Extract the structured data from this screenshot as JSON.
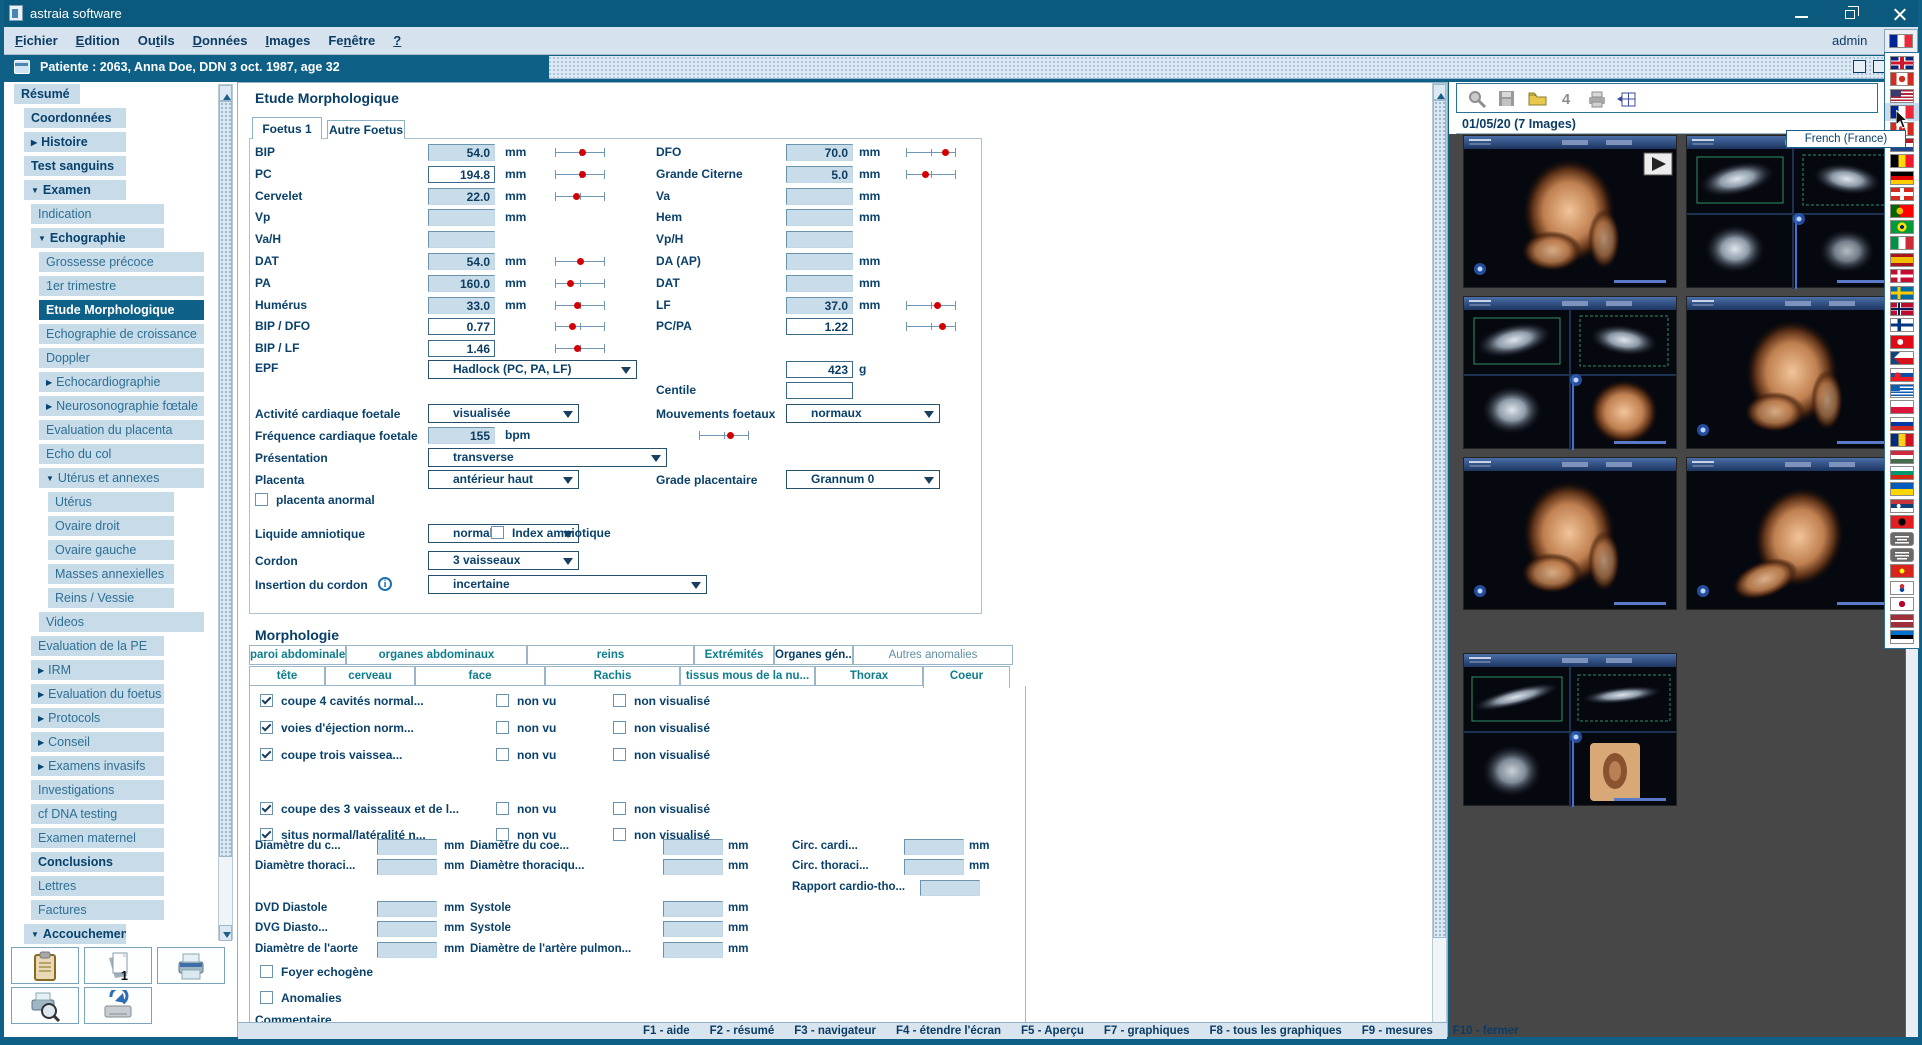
{
  "colors": {
    "titlebar": "#0b5a7d",
    "accent": "#0e6086",
    "navy": "#0a416b",
    "teal_text": "#0d7e8d",
    "sidebar_item_bg": "#c7dbe9",
    "field_bg": "#c9dce9",
    "red_dot": "#d40000"
  },
  "window": {
    "title": "astraia software",
    "controls": [
      {
        "name": "minimize"
      },
      {
        "name": "restore"
      },
      {
        "name": "close"
      }
    ]
  },
  "menu": {
    "items": [
      {
        "label": "Fichier",
        "u": 0
      },
      {
        "label": "Edition",
        "u": 0
      },
      {
        "label": "Outils",
        "u": 2
      },
      {
        "label": "Données",
        "u": 0
      },
      {
        "label": "Images",
        "u": 0
      },
      {
        "label": "Fenêtre",
        "u": 2
      },
      {
        "label": "?",
        "u": 0
      }
    ],
    "user": "admin"
  },
  "patient_bar": {
    "text": "Patiente :  2063, Anna Doe, DDN 3 oct. 1987, age 32"
  },
  "sidebar": {
    "items": [
      {
        "label": "Résumé",
        "level": 0,
        "bold": true
      },
      {
        "label": "Coordonnées",
        "level": 1,
        "bold": true
      },
      {
        "label": "Histoire",
        "level": 1,
        "bold": true,
        "expand": "closed"
      },
      {
        "label": "Test sanguins",
        "level": 1,
        "bold": true
      },
      {
        "label": "Examen",
        "level": 1,
        "bold": true,
        "expand": "open"
      },
      {
        "label": "Indication",
        "level": 2
      },
      {
        "label": "Echographie",
        "level": 2,
        "bold": true,
        "expand": "open"
      },
      {
        "label": "Grossesse précoce",
        "level": 3
      },
      {
        "label": "1er trimestre",
        "level": 3
      },
      {
        "label": "Etude Morphologique",
        "level": 3,
        "active": true
      },
      {
        "label": "Echographie de croissance",
        "level": 3
      },
      {
        "label": "Doppler",
        "level": 3
      },
      {
        "label": "Echocardiographie",
        "level": 3,
        "expand": "closed"
      },
      {
        "label": "Neurosonographie fœtale",
        "level": 3,
        "expand": "closed"
      },
      {
        "label": "Evaluation du placenta",
        "level": 3
      },
      {
        "label": "Echo du col",
        "level": 3
      },
      {
        "label": "Utérus et annexes",
        "level": 3,
        "expand": "open"
      },
      {
        "label": "Utérus",
        "level": 4
      },
      {
        "label": "Ovaire droit",
        "level": 4
      },
      {
        "label": "Ovaire gauche",
        "level": 4
      },
      {
        "label": "Masses annexielles",
        "level": 4
      },
      {
        "label": "Reins / Vessie",
        "level": 4
      },
      {
        "label": "Videos",
        "level": 3
      },
      {
        "label": "Evaluation de la PE",
        "level": 2
      },
      {
        "label": "IRM",
        "level": 2,
        "expand": "closed"
      },
      {
        "label": "Evaluation du foetus",
        "level": 2,
        "expand": "closed"
      },
      {
        "label": "Protocols",
        "level": 2,
        "expand": "closed"
      },
      {
        "label": "Conseil",
        "level": 2,
        "expand": "closed"
      },
      {
        "label": "Examens invasifs",
        "level": 2,
        "expand": "closed"
      },
      {
        "label": "Investigations",
        "level": 2
      },
      {
        "label": "cf DNA testing",
        "level": 2
      },
      {
        "label": "Examen maternel",
        "level": 2
      },
      {
        "label": "Conclusions",
        "level": 2,
        "bold": true
      },
      {
        "label": "Lettres",
        "level": 2
      },
      {
        "label": "Factures",
        "level": 2
      },
      {
        "label": "Accouchement",
        "level": 1,
        "bold": true,
        "expand": "open"
      }
    ],
    "buttons": [
      {
        "icon": "clipboard"
      },
      {
        "icon": "report",
        "badge": "1"
      },
      {
        "icon": "printer"
      },
      {
        "icon": "print-preview"
      },
      {
        "icon": "archive"
      }
    ]
  },
  "form": {
    "title": "Etude Morphologique",
    "tabs": [
      {
        "label": "Foetus 1",
        "active": true
      },
      {
        "label": "Autre Foetus"
      }
    ],
    "left_rows": [
      {
        "label": "BIP",
        "value": "54.0",
        "unit": "mm",
        "editable": false,
        "dot": 0.55
      },
      {
        "label": "PC",
        "value": "194.8",
        "unit": "mm",
        "editable": true,
        "dot": 0.55
      },
      {
        "label": "Cervelet",
        "value": "22.0",
        "unit": "mm",
        "editable": false,
        "dot": 0.42
      },
      {
        "label": "Vp",
        "value": "",
        "unit": "mm",
        "editable": false,
        "dot": null
      },
      {
        "label": "Va/H",
        "value": "",
        "unit": "",
        "editable": false,
        "dot": null
      },
      {
        "label": "DAT",
        "value": "54.0",
        "unit": "mm",
        "editable": false,
        "dot": 0.5
      },
      {
        "label": "PA",
        "value": "160.0",
        "unit": "mm",
        "editable": false,
        "dot": 0.3
      },
      {
        "label": "Humérus",
        "value": "33.0",
        "unit": "mm",
        "editable": false,
        "dot": 0.45
      },
      {
        "label": "BIP / DFO",
        "value": "0.77",
        "unit": "",
        "editable": true,
        "dot": 0.35
      },
      {
        "label": "BIP / LF",
        "value": "1.46",
        "unit": "",
        "editable": true,
        "dot": 0.45
      }
    ],
    "right_rows": [
      {
        "label": "DFO",
        "value": "70.0",
        "unit": "mm",
        "editable": false,
        "dot": 0.78
      },
      {
        "label": "Grande Citerne",
        "value": "5.0",
        "unit": "mm",
        "editable": false,
        "dot": 0.38
      },
      {
        "label": "Va",
        "value": "",
        "unit": "mm",
        "editable": false,
        "dot": null
      },
      {
        "label": "Hem",
        "value": "",
        "unit": "mm",
        "editable": false,
        "dot": null
      },
      {
        "label": "Vp/H",
        "value": "",
        "unit": "",
        "editable": false,
        "dot": null
      },
      {
        "label": "DA (AP)",
        "value": "",
        "unit": "mm",
        "editable": false,
        "dot": null
      },
      {
        "label": "DAT",
        "value": "",
        "unit": "mm",
        "editable": false,
        "dot": null
      },
      {
        "label": "LF",
        "value": "37.0",
        "unit": "mm",
        "editable": false,
        "dot": 0.62
      },
      {
        "label": "PC/PA",
        "value": "1.22",
        "unit": "",
        "editable": true,
        "dot": 0.72
      }
    ],
    "epf": {
      "label": "EPF",
      "method": "Hadlock (PC, PA, LF)",
      "value": "423",
      "unit": "g"
    },
    "centile": {
      "label": "Centile",
      "value": ""
    },
    "vitals_left": [
      {
        "label": "Activité cardiaque foetale",
        "control": "select",
        "value": "visualisée"
      },
      {
        "label": "Fréquence cardiaque foetale",
        "control": "field",
        "value": "155",
        "unit": "bpm",
        "dot": 0.62
      },
      {
        "label": "Présentation",
        "control": "select",
        "value": "transverse"
      },
      {
        "label": "Placenta",
        "control": "select",
        "value": "antérieur haut"
      },
      {
        "label": "placenta anormal",
        "control": "checkbox",
        "checked": false
      },
      {
        "label": "Liquide amniotique",
        "control": "select",
        "value": "normal"
      },
      {
        "label": "Cordon",
        "control": "select",
        "value": "3 vaisseaux"
      },
      {
        "label": "Insertion du cordon",
        "control": "select",
        "value": "incertaine",
        "info": true
      }
    ],
    "index_amniotique": {
      "label": "Index amniotique",
      "checked": false
    },
    "vitals_right": [
      {
        "label": "Mouvements foetaux",
        "control": "select",
        "value": "normaux"
      },
      {
        "label": "Grade placentaire",
        "control": "select",
        "value": "Grannum 0"
      }
    ],
    "morphologie": {
      "title": "Morphologie",
      "tabs_row1": [
        "paroi abdominale",
        "organes abdominaux",
        "reins",
        "Extrémités",
        "Organes gén...",
        "Autres anomalies"
      ],
      "tabs_row2": [
        "tête",
        "cerveau",
        "face",
        "Rachis",
        "tissus mous de la nu...",
        "Thorax",
        "Coeur"
      ],
      "active_tab": "Coeur",
      "bold_tab": "Organes gén...",
      "dim_tab": "Autres anomalies",
      "nonvu_label": "non vu",
      "nonvis_label": "non visualisé",
      "checklist": [
        {
          "label": "coupe 4 cavités normal...",
          "checked": true,
          "nonvu": false,
          "nonvis": false
        },
        {
          "label": "voies d'éjection norm...",
          "checked": true,
          "nonvu": false,
          "nonvis": false
        },
        {
          "label": "coupe trois vaissea...",
          "checked": true,
          "nonvu": false,
          "nonvis": false
        },
        {
          "label": "coupe des 3 vaisseaux et de l...",
          "checked": true,
          "nonvu": false,
          "nonvis": false
        },
        {
          "label": "situs normal/latéralité n...",
          "checked": true,
          "nonvu": false,
          "nonvis": false
        }
      ],
      "measure_rows": [
        [
          {
            "label": "Diamètre du c...",
            "unit": "mm",
            "value": ""
          },
          {
            "label": "Diamètre du coe...",
            "unit": "mm",
            "value": ""
          },
          {
            "label": "Circ. cardi...",
            "unit": "mm",
            "value": ""
          }
        ],
        [
          {
            "label": "Diamètre thoraci...",
            "unit": "mm",
            "value": ""
          },
          {
            "label": "Diamètre thoraciqu...",
            "unit": "mm",
            "value": ""
          },
          {
            "label": "Circ. thoraci...",
            "unit": "mm",
            "value": ""
          }
        ],
        [
          null,
          null,
          {
            "label": "Rapport cardio-tho...",
            "unit": "",
            "value": ""
          }
        ],
        [
          {
            "label": "DVD Diastole",
            "unit": "mm",
            "value": ""
          },
          {
            "label": "Systole",
            "unit": "mm",
            "value": ""
          },
          null
        ],
        [
          {
            "label": "DVG Diasto...",
            "unit": "mm",
            "value": ""
          },
          {
            "label": "Systole",
            "unit": "mm",
            "value": ""
          },
          null
        ],
        [
          {
            "label": "Diamètre de l'aorte",
            "unit": "mm",
            "value": ""
          },
          {
            "label": "Diamètre de l'artère pulmon...",
            "unit": "mm",
            "value": ""
          },
          null
        ]
      ],
      "checkboxes_bottom": [
        {
          "label": "Foyer echogène",
          "checked": false
        },
        {
          "label": "Anomalies",
          "checked": false
        }
      ],
      "comment_label": "Commentaire"
    }
  },
  "fkeys": [
    "F1 - aide",
    "F2 - résumé",
    "F3 - navigateur",
    "F4 - étendre l'écran",
    "F5 - Aperçu",
    "F7 - graphiques",
    "F8 - tous les graphiques",
    "F9 - mesures",
    "F10 - fermer"
  ],
  "images_panel": {
    "date_line": "01/05/20   (7 Images)",
    "toolbar": [
      "zoom",
      "save",
      "open",
      "number-4",
      "print",
      "grid"
    ],
    "thumbnails": [
      {
        "kind": "3d",
        "play": true
      },
      {
        "kind": "quad",
        "play": false
      },
      {
        "kind": "quad3d",
        "play": false
      },
      {
        "kind": "3d",
        "play": false
      },
      {
        "kind": "3d",
        "play": false
      },
      {
        "kind": "3dhand",
        "play": false
      },
      {
        "kind": "quadear",
        "play": false
      }
    ]
  },
  "language": {
    "current": "fr",
    "tooltip": "French (France)",
    "selected_index": 3,
    "flags": [
      "gb",
      "ca",
      "us",
      "fr",
      "ca",
      "nl",
      "be",
      "de",
      "ch",
      "pt",
      "br",
      "it",
      "es",
      "dk",
      "se",
      "no",
      "fi",
      "tr",
      "cz",
      "sk",
      "gr",
      "pl",
      "ru",
      "ro",
      "hu",
      "bg",
      "ua",
      "rs",
      "al",
      "zh-hans",
      "zh-hant",
      "vn",
      "kr",
      "jp",
      "lv",
      "ee"
    ]
  }
}
